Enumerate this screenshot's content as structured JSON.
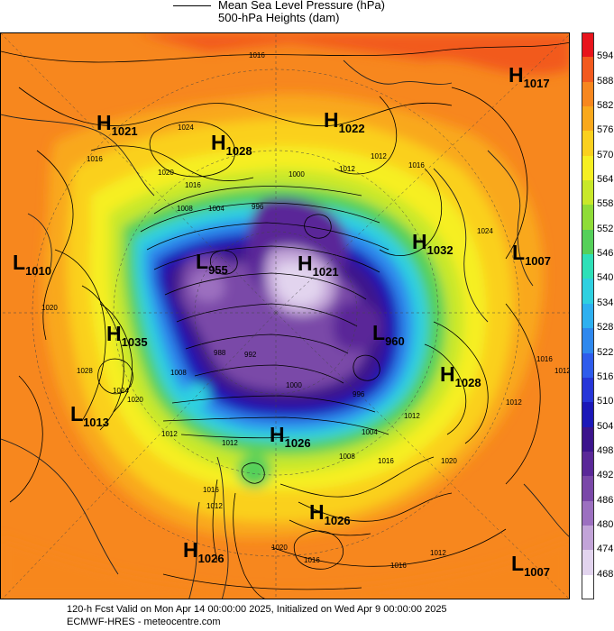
{
  "legend": {
    "line1": "Mean Sea Level Pressure (hPa)",
    "line2": "500-hPa Heights (dam)"
  },
  "colorbar": {
    "ticks": [
      "594",
      "588",
      "582",
      "576",
      "570",
      "564",
      "558",
      "552",
      "546",
      "540",
      "534",
      "528",
      "522",
      "516",
      "510",
      "504",
      "498",
      "492",
      "486",
      "480",
      "474",
      "468"
    ],
    "colors": [
      "#e8141c",
      "#f25a1e",
      "#f7871e",
      "#f9a81c",
      "#fad01e",
      "#f6ef22",
      "#c8e82a",
      "#8fdc38",
      "#55d05a",
      "#2ee0b8",
      "#2fd0e0",
      "#2eb0f0",
      "#2e88ee",
      "#2e5cec",
      "#2636d8",
      "#1c18b8",
      "#3c148c",
      "#5a2898",
      "#7a48a8",
      "#9c70c0",
      "#c2a4d8",
      "#e2d4ee"
    ]
  },
  "pressure_centers": [
    {
      "type": "H",
      "value": "1017",
      "icon": "high-pressure"
    },
    {
      "type": "H",
      "value": "1021",
      "icon": "high-pressure"
    },
    {
      "type": "H",
      "value": "1022",
      "icon": "high-pressure"
    },
    {
      "type": "H",
      "value": "1028",
      "icon": "high-pressure"
    },
    {
      "type": "H",
      "value": "1032",
      "icon": "high-pressure"
    },
    {
      "type": "L",
      "value": "1007",
      "icon": "low-pressure"
    },
    {
      "type": "L",
      "value": "1010",
      "icon": "low-pressure"
    },
    {
      "type": "L",
      "value": "955",
      "icon": "low-pressure"
    },
    {
      "type": "H",
      "value": "1021",
      "icon": "high-pressure"
    },
    {
      "type": "H",
      "value": "1035",
      "icon": "high-pressure"
    },
    {
      "type": "L",
      "value": "960",
      "icon": "low-pressure"
    },
    {
      "type": "H",
      "value": "1028",
      "icon": "high-pressure"
    },
    {
      "type": "L",
      "value": "1013",
      "icon": "low-pressure"
    },
    {
      "type": "H",
      "value": "1026",
      "icon": "high-pressure"
    },
    {
      "type": "H",
      "value": "1026",
      "icon": "high-pressure"
    },
    {
      "type": "H",
      "value": "1026",
      "icon": "high-pressure"
    },
    {
      "type": "L",
      "value": "1007",
      "icon": "low-pressure"
    }
  ],
  "contour_labels": [
    "1016",
    "1024",
    "1016",
    "1020",
    "1016",
    "1008",
    "1004",
    "996",
    "1000",
    "1012",
    "1012",
    "1016",
    "1024",
    "1020",
    "1028",
    "1024",
    "1020",
    "1012",
    "1012",
    "1016",
    "1016",
    "1012",
    "1008",
    "1004",
    "1012",
    "1016",
    "1020",
    "1000",
    "992",
    "988",
    "996",
    "1008",
    "1012",
    "1016",
    "1020",
    "1016",
    "1012",
    "1012"
  ],
  "footer": {
    "line1": "120-h Fcst Valid on Mon Apr 14 00:00:00 2025, Initialized on Wed Apr  9 00:00:00 2025",
    "line2": "ECMWF-HRES  - meteocentre.com"
  }
}
